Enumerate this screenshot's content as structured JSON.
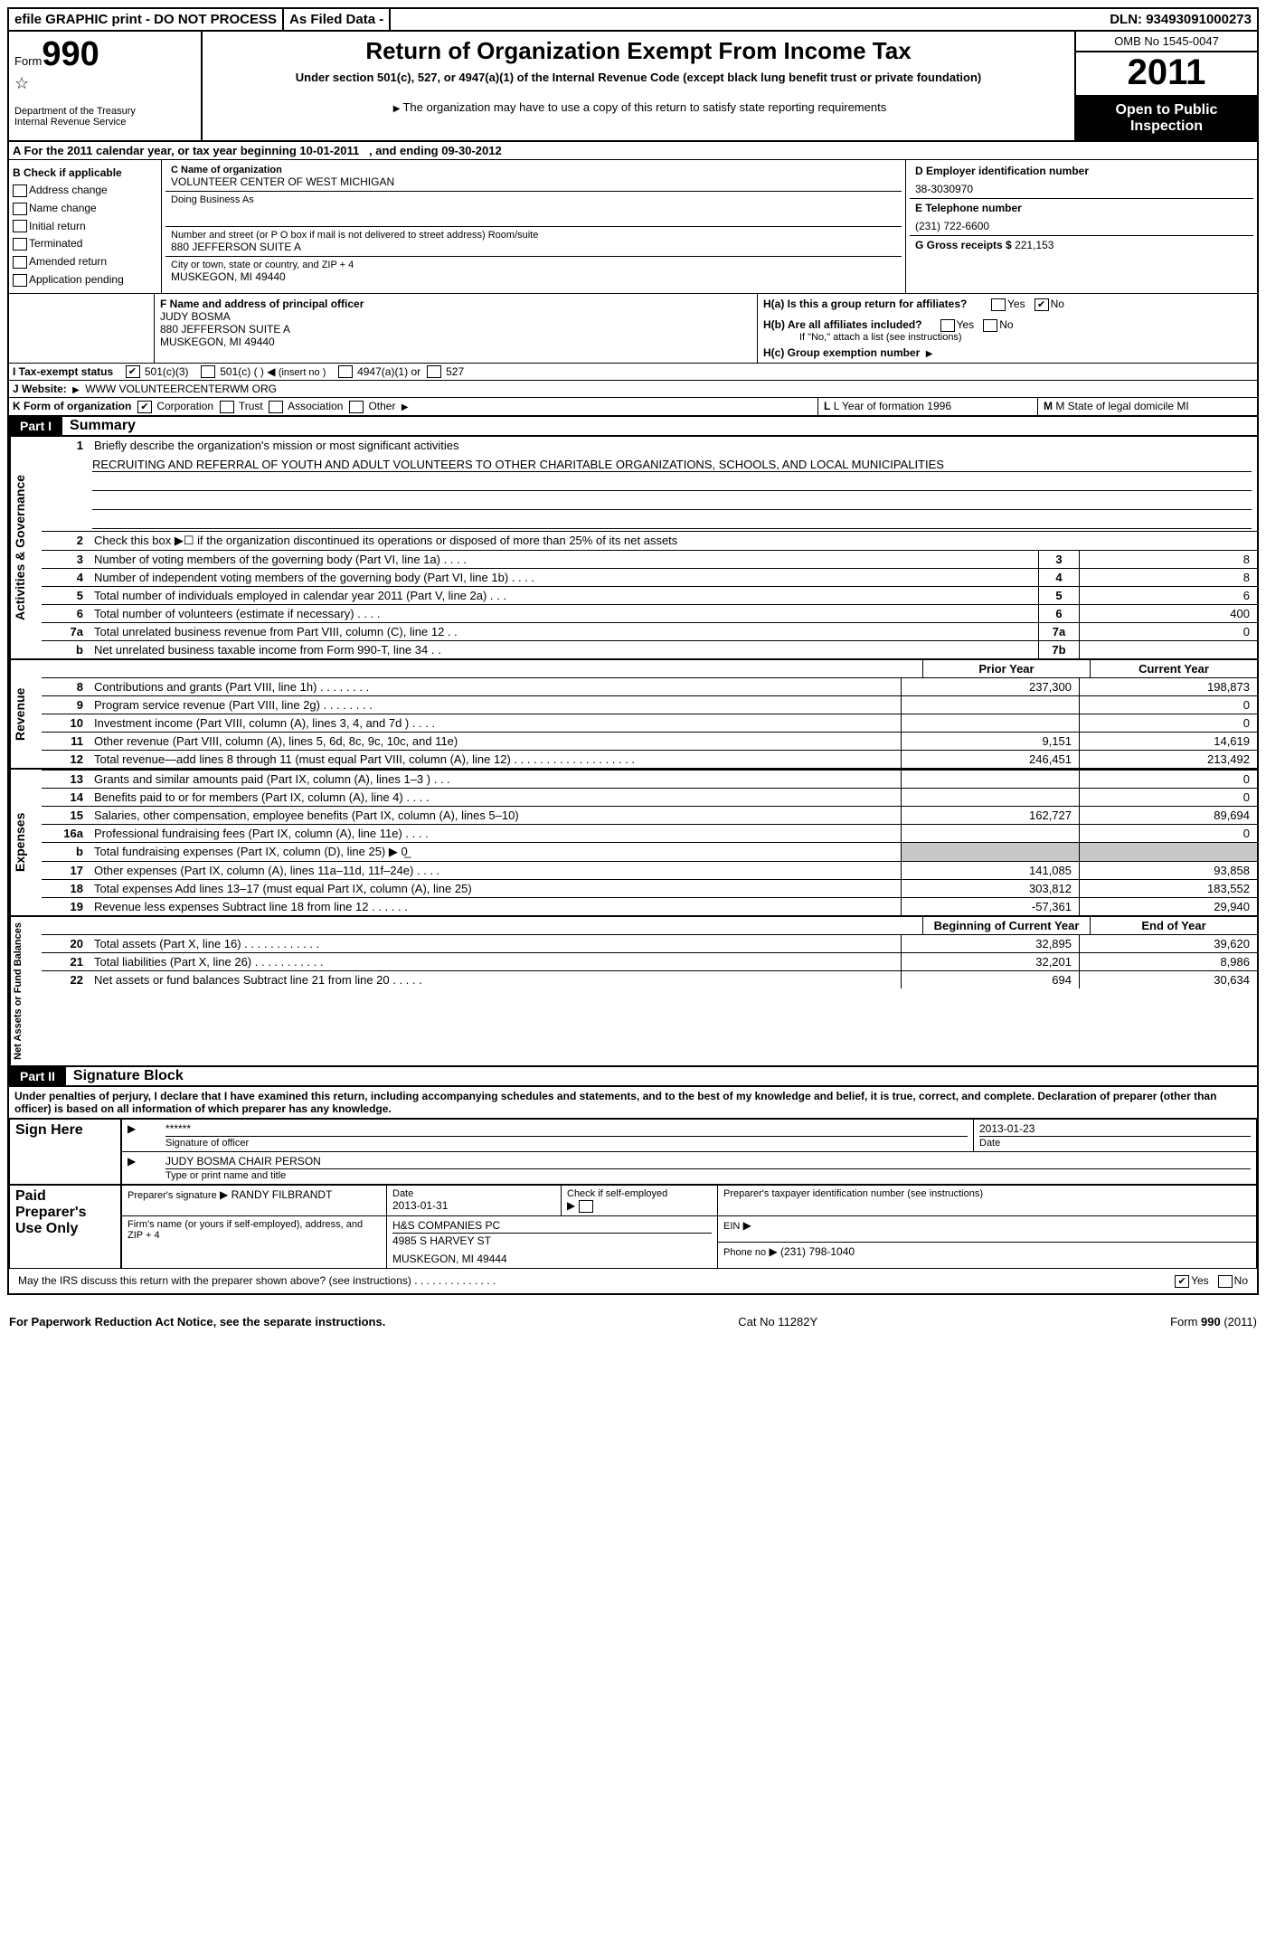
{
  "topbar": {
    "efile": "efile GRAPHIC print - DO NOT PROCESS",
    "asfiled": "As Filed Data -",
    "dln_label": "DLN:",
    "dln": "93493091000273"
  },
  "header": {
    "form_word": "Form",
    "form_num": "990",
    "dept1": "Department of the Treasury",
    "dept2": "Internal Revenue Service",
    "title": "Return of Organization Exempt From Income Tax",
    "sub1": "Under section 501(c), 527, or 4947(a)(1) of the Internal Revenue Code (except black lung benefit trust or private foundation)",
    "sub2": "The organization may have to use a copy of this return to satisfy state reporting requirements",
    "omb": "OMB No 1545-0047",
    "year": "2011",
    "open1": "Open to Public",
    "open2": "Inspection"
  },
  "periodA": {
    "text_a": "A  For the 2011 calendar year, or tax year beginning 10-01-2011",
    "text_b": ", and ending 09-30-2012"
  },
  "sectionB": {
    "label": "B  Check if applicable",
    "items": [
      "Address change",
      "Name change",
      "Initial return",
      "Terminated",
      "Amended return",
      "Application pending"
    ]
  },
  "sectionC": {
    "c_label": "C Name of organization",
    "name": "VOLUNTEER CENTER OF WEST MICHIGAN",
    "dba_label": "Doing Business As",
    "street_label": "Number and street (or P O box if mail is not delivered to street address)   Room/suite",
    "street": "880 JEFFERSON SUITE A",
    "city_label": "City or town, state or country, and ZIP + 4",
    "city": "MUSKEGON, MI  49440"
  },
  "sectionD": {
    "d_label": "D Employer identification number",
    "ein": "38-3030970",
    "e_label": "E Telephone number",
    "phone": "(231) 722-6600",
    "g_label": "G Gross receipts $",
    "g_val": "221,153"
  },
  "sectionF": {
    "label": "F  Name and address of principal officer",
    "name": "JUDY BOSMA",
    "street": "880 JEFFERSON SUITE A",
    "city": "MUSKEGON, MI  49440"
  },
  "sectionH": {
    "ha": "H(a)  Is this a group return for affiliates?",
    "hb": "H(b)  Are all affiliates included?",
    "hb_note": "If \"No,\" attach a list  (see instructions)",
    "hc": "H(c)  Group exemption number",
    "yes": "Yes",
    "no": "No",
    "ha_checked": "no"
  },
  "sectionI": {
    "label": "I   Tax-exempt status",
    "c3": "501(c)(3)",
    "c": "501(c) (   )",
    "c_ins": "(insert no )",
    "a1": "4947(a)(1) or",
    "s527": "527",
    "checked": "c3"
  },
  "sectionJ": {
    "label": "J   Website:",
    "url": "WWW VOLUNTEERCENTERWM ORG"
  },
  "sectionK": {
    "label": "K Form of organization",
    "opts": [
      "Corporation",
      "Trust",
      "Association",
      "Other"
    ],
    "checked": "Corporation",
    "l_label": "L Year of formation  1996",
    "m_label": "M State of legal domicile  MI"
  },
  "part1": {
    "hdr": "Part I",
    "title": "Summary"
  },
  "vlabels": {
    "ag": "Activities & Governance",
    "rev": "Revenue",
    "exp": "Expenses",
    "na": "Net Assets or Fund Balances"
  },
  "summary": {
    "l1_label": "Briefly describe the organization's mission or most significant activities",
    "l1_text": "RECRUITING AND REFERRAL OF YOUTH AND ADULT VOLUNTEERS TO OTHER CHARITABLE ORGANIZATIONS, SCHOOLS, AND LOCAL MUNICIPALITIES",
    "l2": "Check this box ▶☐ if the organization discontinued its operations or disposed of more than 25% of its net assets",
    "rows_ag": [
      {
        "n": "3",
        "d": "Number of voting members of the governing body (Part VI, line 1a)  .   .   .   .",
        "box": "3",
        "v": "8"
      },
      {
        "n": "4",
        "d": "Number of independent voting members of the governing body (Part VI, line 1b)  .   .   .   .",
        "box": "4",
        "v": "8"
      },
      {
        "n": "5",
        "d": "Total number of individuals employed in calendar year 2011 (Part V, line 2a)  .   .   .",
        "box": "5",
        "v": "6"
      },
      {
        "n": "6",
        "d": "Total number of volunteers (estimate if necessary)  .   .   .   .",
        "box": "6",
        "v": "400"
      },
      {
        "n": "7a",
        "d": "Total unrelated business revenue from Part VIII, column (C), line 12  .   .",
        "box": "7a",
        "v": "0"
      },
      {
        "n": "b",
        "d": "Net unrelated business taxable income from Form 990-T, line 34  .   .",
        "box": "7b",
        "v": ""
      }
    ],
    "col_py": "Prior Year",
    "col_cy": "Current Year",
    "rows_rev": [
      {
        "n": "8",
        "d": "Contributions and grants (Part VIII, line 1h)  .   .   .   .   .   .   .   .",
        "py": "237,300",
        "cy": "198,873"
      },
      {
        "n": "9",
        "d": "Program service revenue (Part VIII, line 2g)  .   .   .   .   .   .   .   .",
        "py": "",
        "cy": "0"
      },
      {
        "n": "10",
        "d": "Investment income (Part VIII, column (A), lines 3, 4, and 7d )  .   .   .   .",
        "py": "",
        "cy": "0"
      },
      {
        "n": "11",
        "d": "Other revenue (Part VIII, column (A), lines 5, 6d, 8c, 9c, 10c, and 11e)",
        "py": "9,151",
        "cy": "14,619"
      },
      {
        "n": "12",
        "d": "Total revenue—add lines 8 through 11 (must equal Part VIII, column (A), line 12) .   .   .   .   .   .   .   .   .   .   .   .   .   .   .   .   .   .   .",
        "py": "246,451",
        "cy": "213,492"
      }
    ],
    "rows_exp": [
      {
        "n": "13",
        "d": "Grants and similar amounts paid (Part IX, column (A), lines 1–3 )  .   .   .",
        "py": "",
        "cy": "0"
      },
      {
        "n": "14",
        "d": "Benefits paid to or for members (Part IX, column (A), line 4)  .   .   .   .",
        "py": "",
        "cy": "0"
      },
      {
        "n": "15",
        "d": "Salaries, other compensation, employee benefits (Part IX, column (A), lines 5–10)",
        "py": "162,727",
        "cy": "89,694"
      },
      {
        "n": "16a",
        "d": "Professional fundraising fees (Part IX, column (A), line 11e)  .   .   .   .",
        "py": "",
        "cy": "0"
      },
      {
        "n": "b",
        "d": "Total fundraising expenses (Part IX, column (D), line 25) ▶ 0̲",
        "py": "grey",
        "cy": "grey"
      },
      {
        "n": "17",
        "d": "Other expenses (Part IX, column (A), lines 11a–11d, 11f–24e)  .   .   .   .",
        "py": "141,085",
        "cy": "93,858"
      },
      {
        "n": "18",
        "d": "Total expenses  Add lines 13–17 (must equal Part IX, column (A), line 25)",
        "py": "303,812",
        "cy": "183,552"
      },
      {
        "n": "19",
        "d": "Revenue less expenses  Subtract line 18 from line 12  .   .   .   .   .   .",
        "py": "-57,361",
        "cy": "29,940"
      }
    ],
    "col_by": "Beginning of Current Year",
    "col_ey": "End of Year",
    "rows_na": [
      {
        "n": "20",
        "d": "Total assets (Part X, line 16)  .   .   .   .   .   .   .   .   .   .   .   .",
        "py": "32,895",
        "cy": "39,620"
      },
      {
        "n": "21",
        "d": "Total liabilities (Part X, line 26)  .   .   .   .   .   .   .   .   .   .   .",
        "py": "32,201",
        "cy": "8,986"
      },
      {
        "n": "22",
        "d": "Net assets or fund balances  Subtract line 21 from line 20  .   .   .   .   .",
        "py": "694",
        "cy": "30,634"
      }
    ]
  },
  "part2": {
    "hdr": "Part II",
    "title": "Signature Block"
  },
  "perjury": "Under penalties of perjury, I declare that I have examined this return, including accompanying schedules and statements, and to the best of my knowledge and belief, it is true, correct, and complete. Declaration of preparer (other than officer) is based on all information of which preparer has any knowledge.",
  "sign": {
    "here": "Sign Here",
    "stars": "******",
    "sig_label": "Signature of officer",
    "date": "2013-01-23",
    "date_label": "Date",
    "name": "JUDY BOSMA CHAIR PERSON",
    "name_label": "Type or print name and title"
  },
  "paid": {
    "label": "Paid Preparer's Use Only",
    "prep_sig_label": "Preparer's signature",
    "prep_name": "RANDY FILBRANDT",
    "date_label": "Date",
    "date": "2013-01-31",
    "check_label": "Check if self-employed",
    "ptin_label": "Preparer's taxpayer identification number (see instructions)",
    "firm_label": "Firm's name (or yours if self-employed), address, and ZIP + 4",
    "firm_name": "H&S COMPANIES PC",
    "firm_addr1": "4985 S HARVEY ST",
    "firm_addr2": "MUSKEGON, MI  49444",
    "ein_label": "EIN",
    "phone_label": "Phone no",
    "phone": "(231) 798-1040"
  },
  "irs_line": {
    "q": "May the IRS discuss this return with the preparer shown above? (see instructions)  .   .   .   .   .   .   .   .   .   .   .   .   .   .",
    "yes": "Yes",
    "no": "No",
    "checked": "yes"
  },
  "footer": {
    "left": "For Paperwork Reduction Act Notice, see the separate instructions.",
    "mid": "Cat No  11282Y",
    "right": "Form 990 (2011)"
  }
}
